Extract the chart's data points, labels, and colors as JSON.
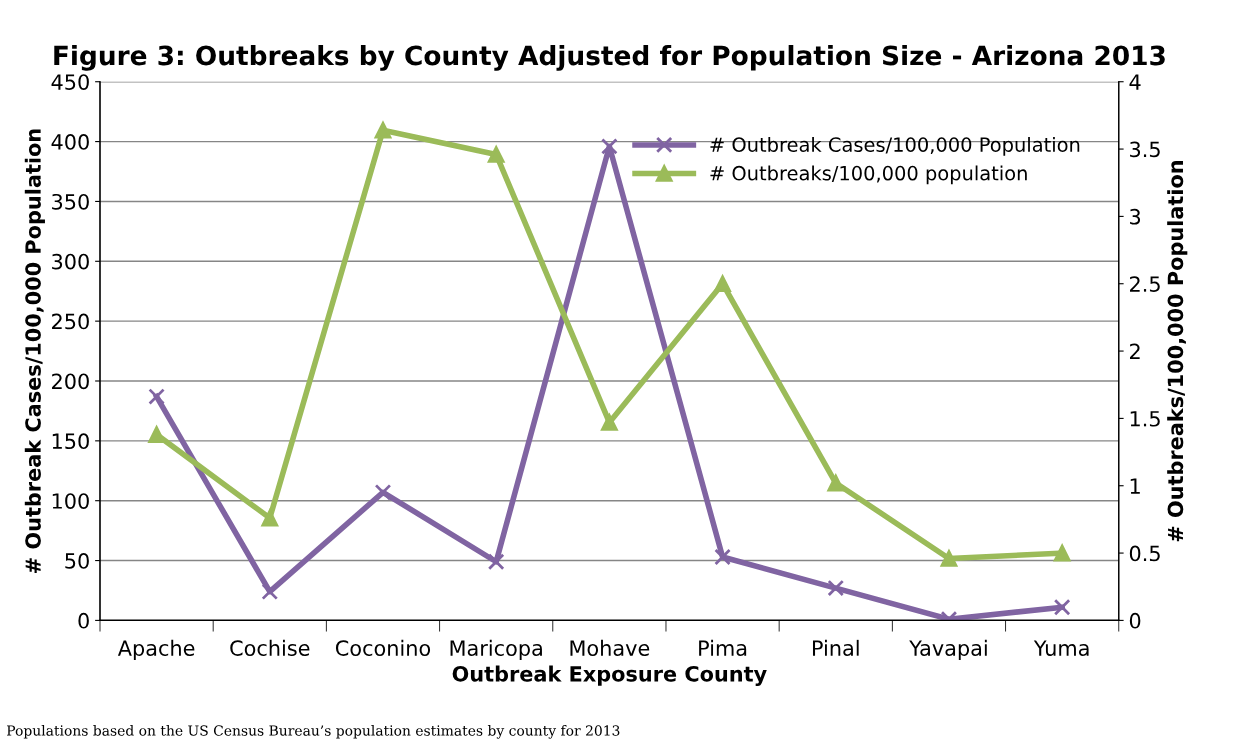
{
  "chart_data": {
    "type": "line",
    "title": "Figure 3: Outbreaks by County Adjusted for Population Size - Arizona 2013",
    "xlabel": "Outbreak Exposure County",
    "ylabel": "# Outbreak Cases/100,000 Population",
    "y2label": "# Outbreaks/100,000 Population",
    "categories": [
      "Apache",
      "Cochise",
      "Coconino",
      "Maricopa",
      "Mohave",
      "Pima",
      "Pinal",
      "Yavapai",
      "Yuma"
    ],
    "series": [
      {
        "name": "# Outbreak Cases/100,000 Population",
        "color": "#8064a2",
        "marker": "cross",
        "values": [
          187,
          24,
          107,
          49,
          396,
          53,
          27,
          1,
          11
        ]
      },
      {
        "name": "# Outbreaks/100,000 population",
        "color": "#9bbb59",
        "marker": "triangle",
        "axis": "y2",
        "values": [
          1.38,
          0.76,
          3.64,
          3.46,
          1.47,
          2.5,
          1.02,
          0.46,
          0.5
        ]
      }
    ],
    "ylim": [
      0,
      450
    ],
    "yticks": [
      0,
      50,
      100,
      150,
      200,
      250,
      300,
      350,
      400,
      450
    ],
    "y2lim": [
      0,
      4
    ],
    "y2ticks": [
      0,
      0.5,
      1,
      1.5,
      2,
      2.5,
      3,
      3.5,
      4
    ],
    "grid": "y",
    "legend": "top right",
    "line_style": "solid",
    "annotations": [
      "Populations based on the US Census Bureau’s population estimates by county for 2013"
    ]
  }
}
